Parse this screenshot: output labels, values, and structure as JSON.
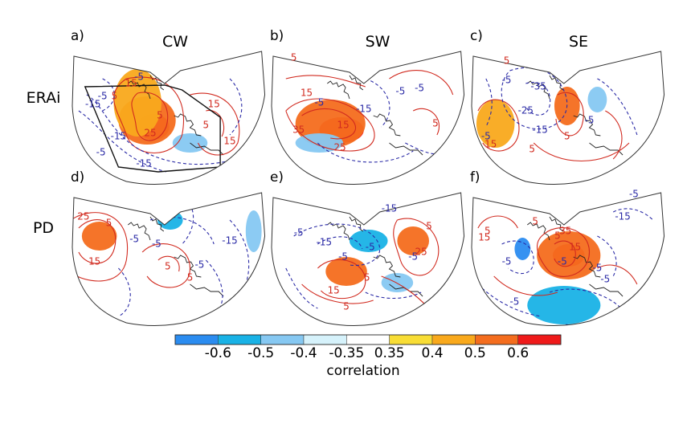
{
  "chart_data": {
    "type": "contour_map_panels",
    "columns": [
      "CW",
      "SW",
      "SE"
    ],
    "rows": [
      "ERAi",
      "PD"
    ],
    "panels": [
      {
        "id": "a)",
        "row": "ERAi",
        "column": "CW",
        "contour_labels": [
          {
            "value": "15",
            "sign": "positive"
          },
          {
            "value": "5",
            "sign": "positive"
          },
          {
            "value": "25",
            "sign": "positive"
          },
          {
            "value": "5",
            "sign": "positive"
          },
          {
            "value": "15",
            "sign": "positive"
          },
          {
            "value": "5",
            "sign": "positive"
          },
          {
            "value": "15",
            "sign": "positive"
          },
          {
            "value": "-5",
            "sign": "negative"
          },
          {
            "value": "-15",
            "sign": "negative"
          },
          {
            "value": "-5",
            "sign": "negative"
          },
          {
            "value": "-15",
            "sign": "negative"
          },
          {
            "value": "-15",
            "sign": "negative"
          },
          {
            "value": "-5",
            "sign": "negative"
          }
        ],
        "shaded_regions": [
          {
            "correlation": 0.6,
            "sign": "positive"
          },
          {
            "correlation": 0.5,
            "sign": "positive"
          },
          {
            "correlation": 0.4,
            "sign": "positive"
          },
          {
            "correlation": -0.4,
            "sign": "negative"
          }
        ]
      },
      {
        "id": "b)",
        "row": "ERAi",
        "column": "SW",
        "contour_labels": [
          {
            "value": "5",
            "sign": "positive"
          },
          {
            "value": "15",
            "sign": "positive"
          },
          {
            "value": "35",
            "sign": "positive"
          },
          {
            "value": "15",
            "sign": "positive"
          },
          {
            "value": "25",
            "sign": "positive"
          },
          {
            "value": "5",
            "sign": "positive"
          },
          {
            "value": "-5",
            "sign": "negative"
          },
          {
            "value": "-15",
            "sign": "negative"
          },
          {
            "value": "-5",
            "sign": "negative"
          },
          {
            "value": "-5",
            "sign": "negative"
          }
        ],
        "shaded_regions": [
          {
            "correlation": 0.6,
            "sign": "positive"
          },
          {
            "correlation": 0.5,
            "sign": "positive"
          },
          {
            "correlation": -0.4,
            "sign": "negative"
          }
        ]
      },
      {
        "id": "c)",
        "row": "ERAi",
        "column": "SE",
        "contour_labels": [
          {
            "value": "-5",
            "sign": "negative"
          },
          {
            "value": "-35",
            "sign": "negative"
          },
          {
            "value": "-25",
            "sign": "negative"
          },
          {
            "value": "-15",
            "sign": "negative"
          },
          {
            "value": "-5",
            "sign": "negative"
          },
          {
            "value": "-5",
            "sign": "negative"
          },
          {
            "value": "15",
            "sign": "positive"
          },
          {
            "value": "5",
            "sign": "positive"
          },
          {
            "value": "5",
            "sign": "positive"
          },
          {
            "value": "5",
            "sign": "positive"
          }
        ],
        "shaded_regions": [
          {
            "correlation": 0.4,
            "sign": "positive"
          },
          {
            "correlation": 0.5,
            "sign": "positive"
          },
          {
            "correlation": -0.4,
            "sign": "negative"
          }
        ]
      },
      {
        "id": "d)",
        "row": "PD",
        "column": "CW",
        "contour_labels": [
          {
            "value": "25",
            "sign": "positive"
          },
          {
            "value": "5",
            "sign": "positive"
          },
          {
            "value": "15",
            "sign": "positive"
          },
          {
            "value": "5",
            "sign": "positive"
          },
          {
            "value": "5",
            "sign": "positive"
          },
          {
            "value": "-5",
            "sign": "negative"
          },
          {
            "value": "-5",
            "sign": "negative"
          },
          {
            "value": "-15",
            "sign": "negative"
          },
          {
            "value": "-5",
            "sign": "negative"
          }
        ],
        "shaded_regions": [
          {
            "correlation": 0.5,
            "sign": "positive"
          },
          {
            "correlation": -0.5,
            "sign": "negative"
          },
          {
            "correlation": -0.4,
            "sign": "negative"
          }
        ]
      },
      {
        "id": "e)",
        "row": "PD",
        "column": "SW",
        "contour_labels": [
          {
            "value": "-15",
            "sign": "negative"
          },
          {
            "value": "-5",
            "sign": "negative"
          },
          {
            "value": "-15",
            "sign": "negative"
          },
          {
            "value": "-5",
            "sign": "negative"
          },
          {
            "value": "-5",
            "sign": "negative"
          },
          {
            "value": "-5",
            "sign": "negative"
          },
          {
            "value": "25",
            "sign": "positive"
          },
          {
            "value": "5",
            "sign": "positive"
          },
          {
            "value": "15",
            "sign": "positive"
          },
          {
            "value": "5",
            "sign": "positive"
          },
          {
            "value": "5",
            "sign": "positive"
          }
        ],
        "shaded_regions": [
          {
            "correlation": 0.5,
            "sign": "positive"
          },
          {
            "correlation": 0.5,
            "sign": "positive"
          },
          {
            "correlation": -0.5,
            "sign": "negative"
          },
          {
            "correlation": -0.4,
            "sign": "negative"
          }
        ]
      },
      {
        "id": "f)",
        "row": "PD",
        "column": "SE",
        "contour_labels": [
          {
            "value": "-5",
            "sign": "negative"
          },
          {
            "value": "-15",
            "sign": "negative"
          },
          {
            "value": "-5",
            "sign": "negative"
          },
          {
            "value": "-5",
            "sign": "negative"
          },
          {
            "value": "-5",
            "sign": "negative"
          },
          {
            "value": "-5",
            "sign": "negative"
          },
          {
            "value": "-5",
            "sign": "negative"
          },
          {
            "value": "5",
            "sign": "positive"
          },
          {
            "value": "15",
            "sign": "positive"
          },
          {
            "value": "35",
            "sign": "positive"
          },
          {
            "value": "15",
            "sign": "positive"
          },
          {
            "value": "5",
            "sign": "positive"
          },
          {
            "value": "5",
            "sign": "positive"
          }
        ],
        "shaded_regions": [
          {
            "correlation": 0.6,
            "sign": "positive"
          },
          {
            "correlation": 0.5,
            "sign": "positive"
          },
          {
            "correlation": -0.5,
            "sign": "negative"
          },
          {
            "correlation": -0.6,
            "sign": "negative"
          }
        ]
      }
    ],
    "colorbar": {
      "label": "correlation",
      "tick_labels": [
        "-0.6",
        "-0.5",
        "-0.4",
        "-0.35",
        "0.35",
        "0.4",
        "0.5",
        "0.6"
      ],
      "colors": [
        "#2b8cf0",
        "#19b2e6",
        "#86c8f2",
        "#d6f2fb",
        "#ffffff",
        "#f8dd35",
        "#f9a91c",
        "#f46d1e",
        "#ef1a1a"
      ]
    },
    "colors": {
      "positive_contour": "#d12a1f",
      "negative_contour": "#2a2aa6",
      "coastline": "#222222",
      "map_edge": "#333333"
    }
  }
}
